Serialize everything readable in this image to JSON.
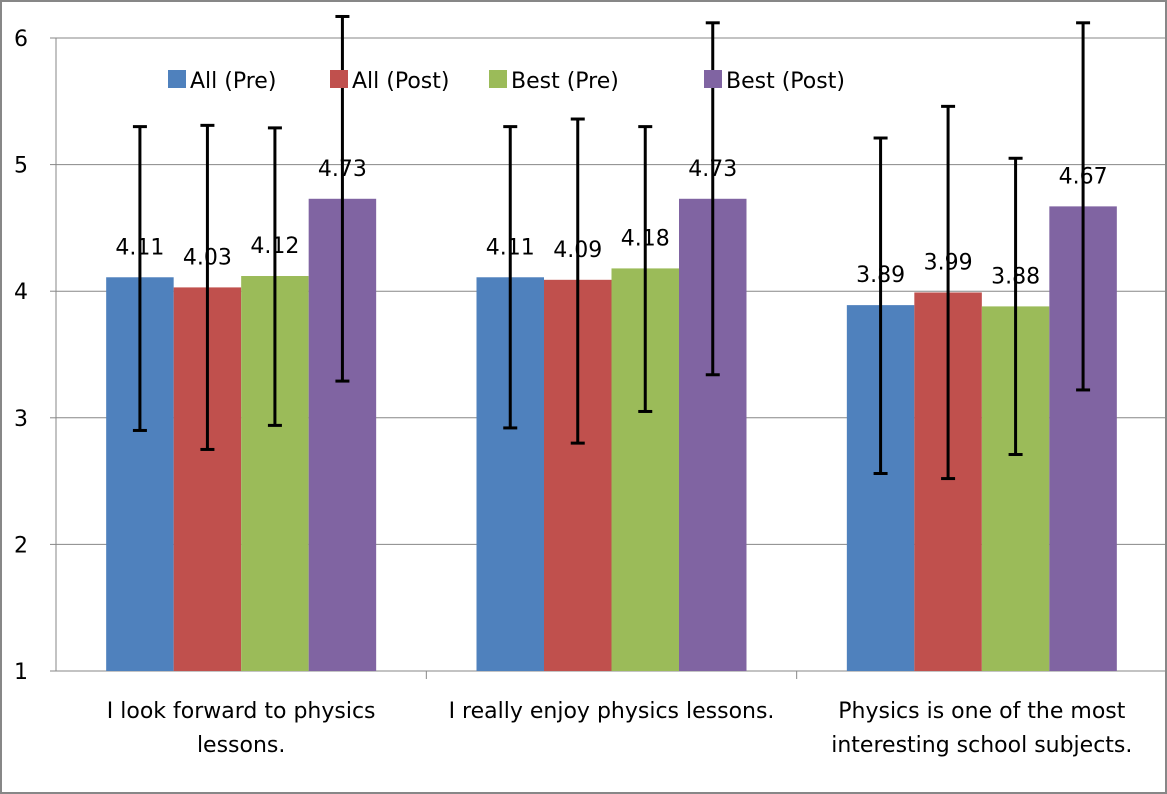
{
  "chart_data": {
    "type": "bar",
    "categories": [
      [
        "I look forward to physics",
        "lessons."
      ],
      [
        "I really enjoy physics lessons."
      ],
      [
        "Physics is one of the most",
        "interesting school subjects."
      ]
    ],
    "series": [
      {
        "name": "All (Pre)",
        "color": "#4F81BD",
        "values": [
          4.11,
          4.11,
          3.89
        ],
        "labels": [
          "4.11",
          "4.11",
          "3.89"
        ],
        "error_low": [
          2.9,
          2.92,
          2.56
        ],
        "error_high": [
          5.3,
          5.3,
          5.21
        ]
      },
      {
        "name": "All (Post)",
        "color": "#C0504D",
        "values": [
          4.03,
          4.09,
          3.99
        ],
        "labels": [
          "4.03",
          "4.09",
          "3.99"
        ],
        "error_low": [
          2.75,
          2.8,
          2.52
        ],
        "error_high": [
          5.31,
          5.36,
          5.46
        ]
      },
      {
        "name": "Best (Pre)",
        "color": "#9BBB59",
        "values": [
          4.12,
          4.18,
          3.88
        ],
        "labels": [
          "4.12",
          "4.18",
          "3.88"
        ],
        "error_low": [
          2.94,
          3.05,
          2.71
        ],
        "error_high": [
          5.29,
          5.3,
          5.05
        ]
      },
      {
        "name": "Best (Post)",
        "color": "#8064A2",
        "values": [
          4.73,
          4.73,
          4.67
        ],
        "labels": [
          "4.73",
          "4.73",
          "4.67"
        ],
        "error_low": [
          3.29,
          3.34,
          3.22
        ],
        "error_high": [
          6.17,
          6.12,
          6.12
        ]
      }
    ],
    "ylim": [
      1,
      6
    ],
    "yticks": [
      "1",
      "2",
      "3",
      "4",
      "5",
      "6"
    ],
    "grid": true,
    "legend": "top",
    "title": "",
    "xlabel": "",
    "ylabel": ""
  }
}
